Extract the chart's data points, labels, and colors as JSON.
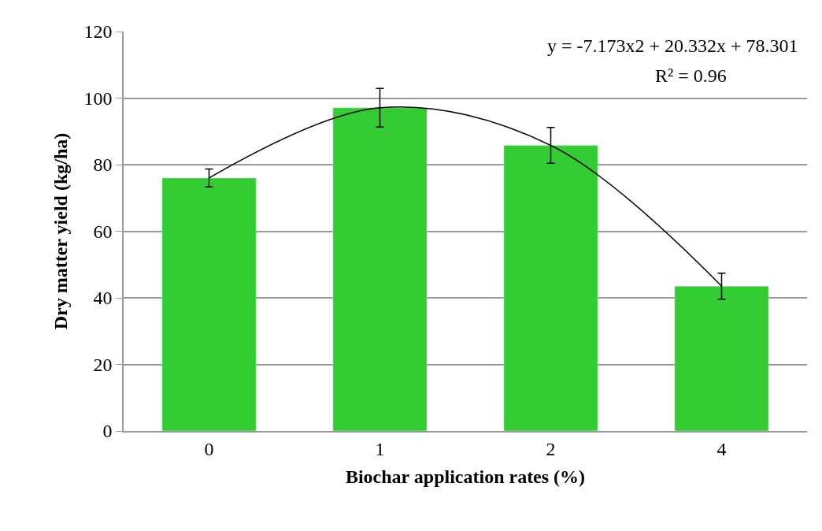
{
  "chart_data": {
    "type": "bar",
    "xlabel": "Biochar application rates (%)",
    "ylabel": "Dry matter yield (kg/ha)",
    "categories": [
      "0",
      "1",
      "2",
      "4"
    ],
    "series": [
      {
        "color": "#33cc33",
        "values": [
          76.0,
          97.1,
          85.8,
          43.5
        ],
        "errors": [
          2.7,
          5.8,
          5.4,
          3.9
        ]
      },
      {
        "type": "line",
        "color": "#000000",
        "values": [
          76.0,
          97.1,
          85.8,
          43.5
        ],
        "marker": "none",
        "line_style": "solid"
      }
    ],
    "ylim": [
      0,
      120
    ],
    "yticks": [
      0,
      20,
      40,
      60,
      80,
      100,
      120
    ],
    "grid": "y",
    "annotations": [
      "y = -7.173x2 + 20.332x + 78.301",
      "R² = 0.96"
    ]
  }
}
